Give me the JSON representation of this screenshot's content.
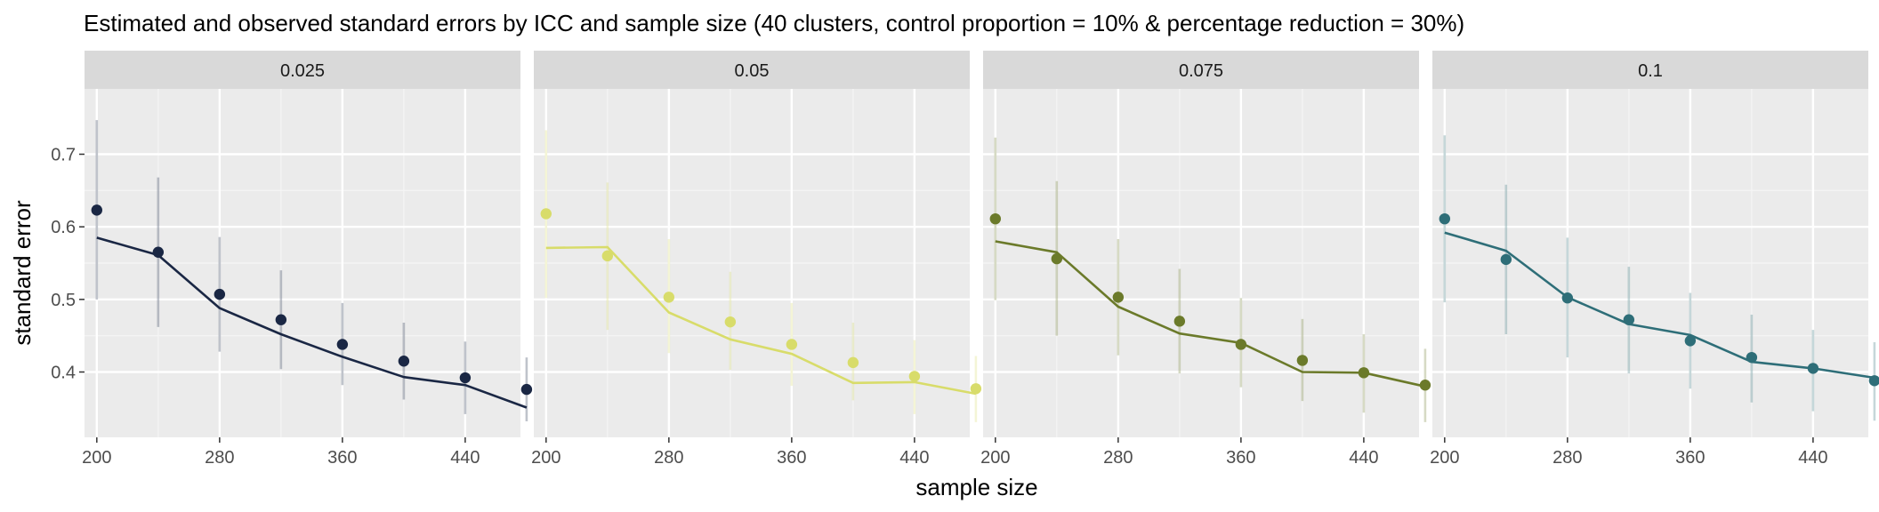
{
  "chart_data": {
    "type": "line",
    "title": "Estimated and observed standard errors by ICC and sample size (40 clusters, control proportion = 10% & percentage reduction = 30%)",
    "xlabel": "sample size",
    "ylabel": "standard error",
    "x_ticks": [
      200,
      280,
      360,
      440
    ],
    "y_ticks": [
      0.4,
      0.5,
      0.6,
      0.7
    ],
    "xlim": [
      192,
      476
    ],
    "ylim": [
      0.31,
      0.79
    ],
    "grid": true,
    "x": [
      200,
      240,
      280,
      320,
      360,
      400,
      440,
      480
    ],
    "panels": [
      {
        "label": "0.025",
        "color": "#1a2744",
        "estimated": [
          0.585,
          0.561,
          0.488,
          0.452,
          0.421,
          0.393,
          0.382,
          0.351
        ],
        "observed": [
          0.623,
          0.565,
          0.507,
          0.472,
          0.438,
          0.415,
          0.392,
          0.376
        ],
        "error_low": [
          0.5,
          0.462,
          0.428,
          0.404,
          0.382,
          0.362,
          0.342,
          0.332
        ],
        "error_high": [
          0.747,
          0.668,
          0.586,
          0.54,
          0.495,
          0.468,
          0.442,
          0.42
        ]
      },
      {
        "label": "0.05",
        "color": "#d8dc6a",
        "estimated": [
          0.571,
          0.572,
          0.482,
          0.445,
          0.425,
          0.385,
          0.386,
          0.37
        ],
        "observed": [
          0.618,
          0.56,
          0.503,
          0.469,
          0.438,
          0.413,
          0.394,
          0.377
        ],
        "error_low": [
          0.502,
          0.458,
          0.426,
          0.403,
          0.381,
          0.361,
          0.342,
          0.331
        ],
        "error_high": [
          0.733,
          0.661,
          0.583,
          0.538,
          0.495,
          0.468,
          0.444,
          0.422
        ]
      },
      {
        "label": "0.075",
        "color": "#6b7a2a",
        "estimated": [
          0.58,
          0.565,
          0.49,
          0.453,
          0.44,
          0.4,
          0.399,
          0.38
        ],
        "observed": [
          0.611,
          0.556,
          0.503,
          0.47,
          0.438,
          0.416,
          0.399,
          0.382
        ],
        "error_low": [
          0.499,
          0.45,
          0.423,
          0.398,
          0.379,
          0.36,
          0.344,
          0.331
        ],
        "error_high": [
          0.723,
          0.663,
          0.583,
          0.542,
          0.502,
          0.473,
          0.452,
          0.432
        ]
      },
      {
        "label": "0.1",
        "color": "#2e6e78",
        "estimated": [
          0.592,
          0.567,
          0.503,
          0.466,
          0.451,
          0.414,
          0.405,
          0.392
        ],
        "observed": [
          0.611,
          0.555,
          0.502,
          0.472,
          0.443,
          0.42,
          0.405,
          0.388
        ],
        "error_low": [
          0.496,
          0.452,
          0.42,
          0.398,
          0.377,
          0.358,
          0.346,
          0.333
        ],
        "error_high": [
          0.726,
          0.658,
          0.585,
          0.545,
          0.509,
          0.479,
          0.458,
          0.441
        ]
      }
    ]
  }
}
